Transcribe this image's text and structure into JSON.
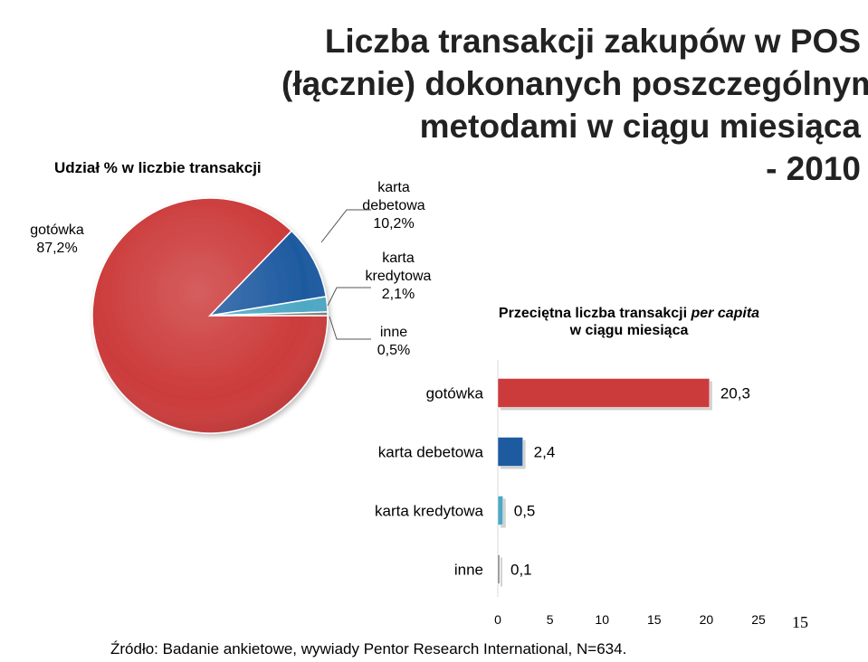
{
  "title": {
    "line1": "Liczba transakcji zakupów w POS",
    "line2": "(łącznie) dokonanych poszczególnymi",
    "line3": "metodami w ciągu miesiąca",
    "line4": "- 2010"
  },
  "source": "Źródło: Badanie ankietowe, wywiady Pentor Research International, N=634.",
  "page_number": "15",
  "chart_data": [
    {
      "type": "pie",
      "title": "Udział % w liczbie transakcji",
      "slices": [
        {
          "label_l1": "gotówka",
          "label_l2": "",
          "pct": "87,2%",
          "value": 87.2,
          "color": "#cc3b3b"
        },
        {
          "label_l1": "karta",
          "label_l2": "debetowa",
          "pct": "10,2%",
          "value": 10.2,
          "color": "#1e5aa0"
        },
        {
          "label_l1": "karta",
          "label_l2": "kredytowa",
          "pct": "2,1%",
          "value": 2.1,
          "color": "#4ea8c4"
        },
        {
          "label_l1": "inne",
          "label_l2": "",
          "pct": "0,5%",
          "value": 0.5,
          "color": "#7f7f7f"
        }
      ]
    },
    {
      "type": "bar",
      "orientation": "horizontal",
      "title_l1": "Przeciętna liczba transakcji",
      "title_italic": "per capita",
      "title_l2": "w ciągu miesiąca",
      "categories": [
        "gotówka",
        "karta debetowa",
        "karta kredytowa",
        "inne"
      ],
      "values": [
        20.3,
        2.4,
        0.5,
        0.1
      ],
      "value_labels": [
        "20,3",
        "2,4",
        "0,5",
        "0,1"
      ],
      "colors": [
        "#cc3b3b",
        "#1e5aa0",
        "#4ea8c4",
        "#7f7f7f"
      ],
      "xlim": [
        0,
        25
      ],
      "xticks": [
        "0",
        "5",
        "10",
        "15",
        "20",
        "25"
      ]
    }
  ]
}
